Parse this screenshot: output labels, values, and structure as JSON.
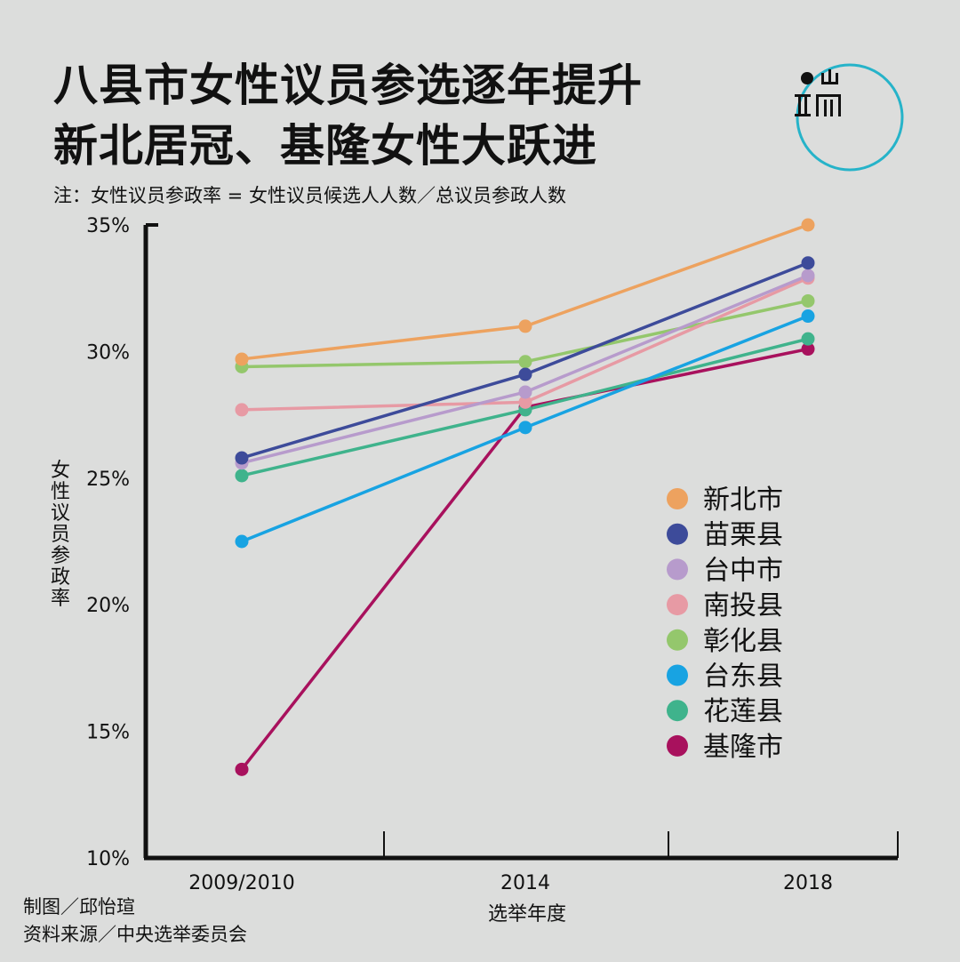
{
  "header": {
    "title_line1": "八县市女性议员参选逐年提升",
    "title_line2": "新北居冠、基隆女性大跃进",
    "note": "注：女性议员参政率 = 女性议员候选人人数／总议员参政人数"
  },
  "footer": {
    "credit": "制图／邱怡瑄",
    "source": "资料来源／中央选举委员会"
  },
  "chart_data": {
    "type": "line",
    "categories": [
      "2009/2010",
      "2014",
      "2018"
    ],
    "xlabel": "选举年度",
    "ylabel": "女性议员参政率",
    "ylim": [
      10,
      35
    ],
    "yticks": [
      "10%",
      "15%",
      "20%",
      "25%",
      "30%",
      "35%"
    ],
    "grid": false,
    "legend_position": "right",
    "series": [
      {
        "name": "新北市",
        "color": "#eda25f",
        "values": [
          29.7,
          31.0,
          35.0
        ]
      },
      {
        "name": "苗栗县",
        "color": "#3d4b9a",
        "values": [
          25.8,
          29.1,
          33.5
        ]
      },
      {
        "name": "台中市",
        "color": "#b79bcc",
        "values": [
          25.6,
          28.4,
          33.0
        ]
      },
      {
        "name": "南投县",
        "color": "#e79aa4",
        "values": [
          27.7,
          28.0,
          32.9
        ]
      },
      {
        "name": "彰化县",
        "color": "#94c76c",
        "values": [
          29.4,
          29.6,
          32.0
        ]
      },
      {
        "name": "台东县",
        "color": "#18a3e2",
        "values": [
          22.5,
          27.0,
          31.4
        ]
      },
      {
        "name": "花莲县",
        "color": "#3fb38c",
        "values": [
          25.1,
          27.7,
          30.5
        ]
      },
      {
        "name": "基隆市",
        "color": "#a8115d",
        "values": [
          13.5,
          27.8,
          30.1
        ]
      }
    ]
  },
  "logo": {
    "name": "logo-icon",
    "ring_color": "#26b3c9"
  }
}
